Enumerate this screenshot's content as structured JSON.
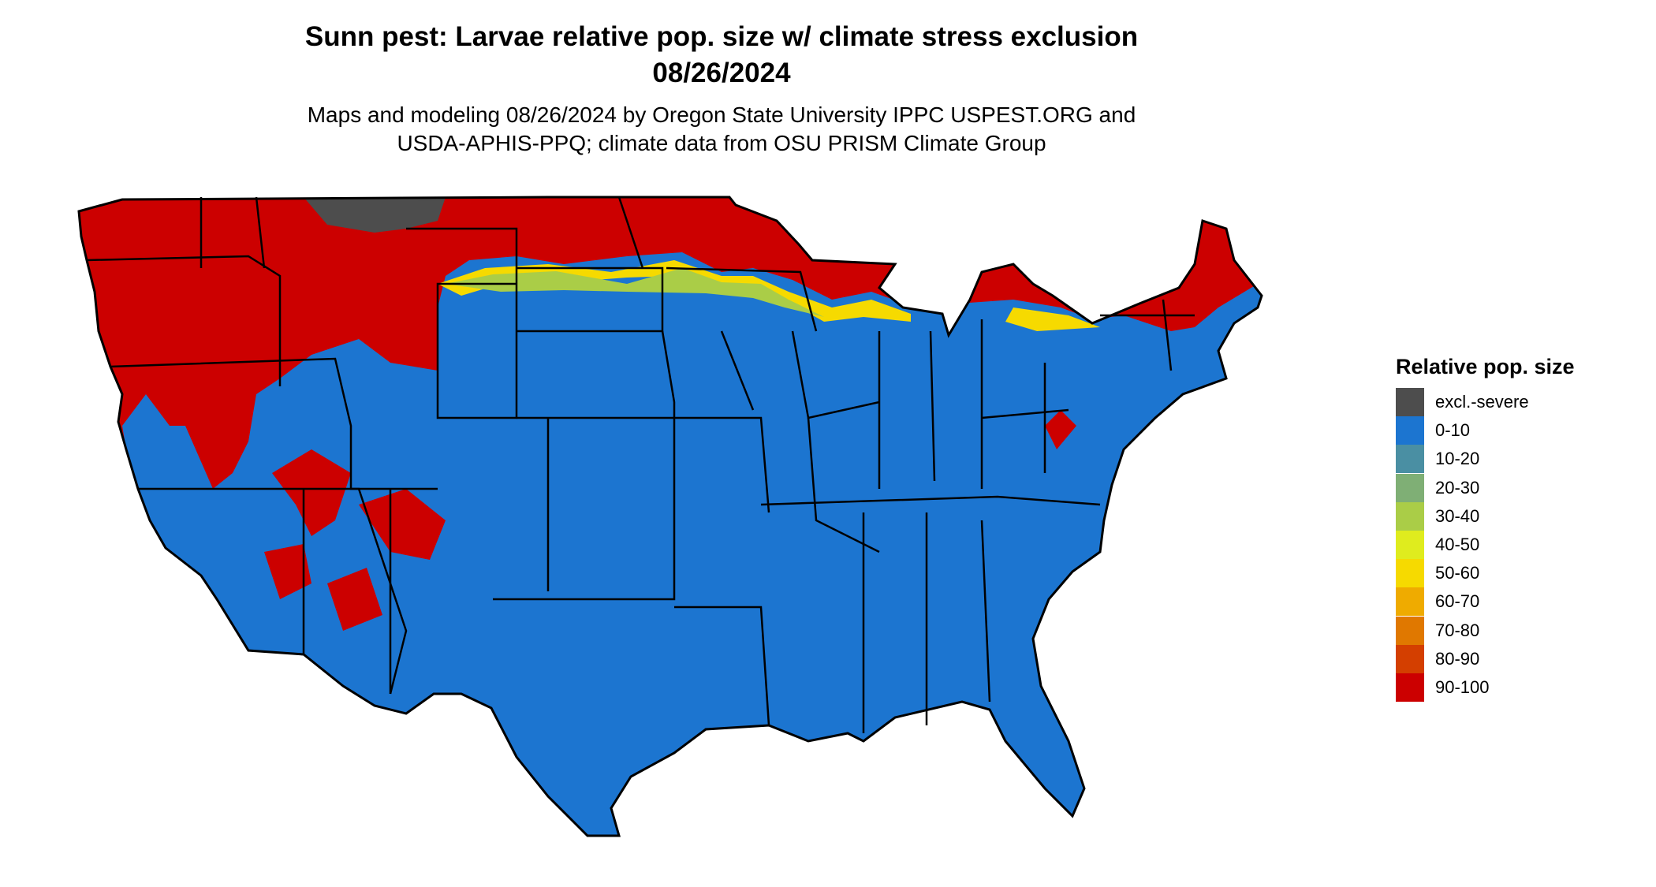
{
  "map": {
    "title_line1": "Sunn pest: Larvae relative pop. size w/ climate stress exclusion",
    "title_line2": "08/26/2024",
    "subtitle_line1": "Maps and modeling 08/26/2024 by Oregon State University IPPC USPEST.ORG and",
    "subtitle_line2": "USDA-APHIS-PPQ; climate data from OSU PRISM Climate Group",
    "region": "Contiguous United States",
    "dominant_class": "0-10"
  },
  "legend": {
    "title": "Relative pop. size",
    "items": [
      {
        "label": "excl.-severe",
        "color": "#4d4d4d"
      },
      {
        "label": "0-10",
        "color": "#1c75d0"
      },
      {
        "label": "10-20",
        "color": "#4a8fa3"
      },
      {
        "label": "20-30",
        "color": "#7faf75"
      },
      {
        "label": "30-40",
        "color": "#aacd47"
      },
      {
        "label": "40-50",
        "color": "#dfec1e"
      },
      {
        "label": "50-60",
        "color": "#f6da00"
      },
      {
        "label": "60-70",
        "color": "#efab00"
      },
      {
        "label": "70-80",
        "color": "#e07800"
      },
      {
        "label": "80-90",
        "color": "#d43f00"
      },
      {
        "label": "90-100",
        "color": "#cc0000"
      }
    ]
  }
}
